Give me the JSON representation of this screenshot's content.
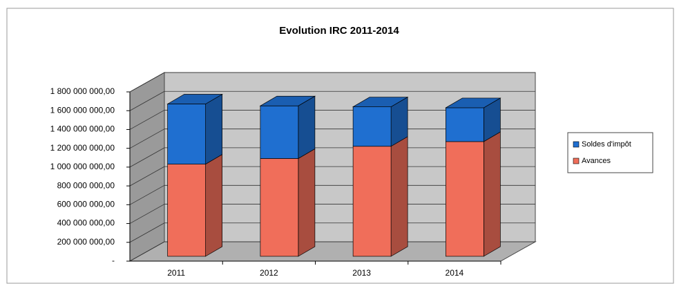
{
  "chart_data": {
    "type": "bar3d_stacked",
    "title": "Evolution IRC 2011-2014",
    "categories": [
      "2011",
      "2012",
      "2013",
      "2014"
    ],
    "series": [
      {
        "name": "Avances",
        "color": "#f06e5a",
        "values": [
          980000000,
          1040000000,
          1170000000,
          1220000000
        ]
      },
      {
        "name": "Soldes d'impôt",
        "color": "#1f6fd0",
        "values": [
          640000000,
          560000000,
          420000000,
          360000000
        ]
      }
    ],
    "ylim": [
      0,
      1800000000
    ],
    "yticks": [
      {
        "value": 0,
        "label": "-"
      },
      {
        "value": 200000000,
        "label": "200 000 000,00"
      },
      {
        "value": 400000000,
        "label": "400 000 000,00"
      },
      {
        "value": 600000000,
        "label": "600 000 000,00"
      },
      {
        "value": 800000000,
        "label": "800 000 000,00"
      },
      {
        "value": 1000000000,
        "label": "1 000 000 000,00"
      },
      {
        "value": 1200000000,
        "label": "1 200 000 000,00"
      },
      {
        "value": 1400000000,
        "label": "1 400 000 000,00"
      },
      {
        "value": 1600000000,
        "label": "1 600 000 000,00"
      },
      {
        "value": 1800000000,
        "label": "1 800 000 000,00"
      }
    ],
    "grid": true
  }
}
